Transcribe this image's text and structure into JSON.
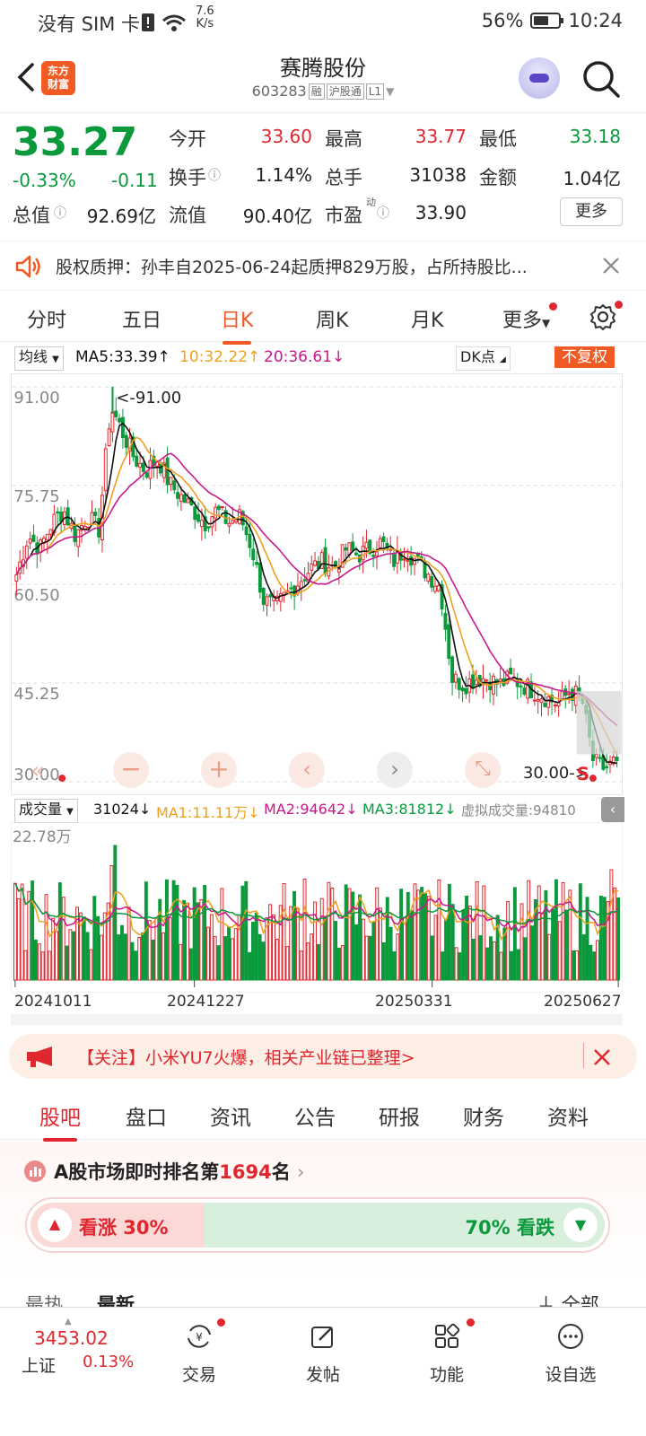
{
  "status_bar": {
    "carrier": "没有 SIM 卡",
    "net_speed_value": "7.6",
    "net_speed_unit": "K/s",
    "battery": "56%",
    "battery_level": 0.56,
    "time": "10:24"
  },
  "header": {
    "logo_line1": "东方",
    "logo_line2": "财富",
    "stock_name": "赛腾股份",
    "stock_code": "603283",
    "tags": [
      "融",
      "沪股通",
      "L1"
    ]
  },
  "quote": {
    "price": "33.27",
    "change_pct": "-0.33%",
    "change_val": "-0.11",
    "open_label": "今开",
    "open": "33.60",
    "high_label": "最高",
    "high": "33.77",
    "low_label": "最低",
    "low": "33.18",
    "turnover_label": "换手",
    "turnover": "1.14%",
    "volume_label": "总手",
    "volume": "31038",
    "amount_label": "金额",
    "amount": "1.04亿",
    "mktcap_label": "总值",
    "mktcap": "92.69亿",
    "float_label": "流值",
    "float_cap": "90.40亿",
    "pe_label": "市盈",
    "pe_sup": "动",
    "pe": "33.90",
    "more_label": "更多"
  },
  "notice": {
    "text": "股权质押：孙丰自2025-06-24起质押829万股，占所持股比..."
  },
  "chart_tabs": [
    "分时",
    "五日",
    "日K",
    "周K",
    "月K",
    "更多"
  ],
  "chart_tabs_active": 2,
  "ma_row": {
    "selector": "均线",
    "ma5": "MA5:33.39",
    "ma10": "10:32.22",
    "ma20": "20:36.61",
    "dk": "DK点",
    "adjust": "不复权"
  },
  "kline_labels": {
    "y_ticks": [
      "91.00",
      "75.75",
      "60.50",
      "45.25",
      "30.00"
    ],
    "max_marker": "<-91.00",
    "min_marker": "30.00->",
    "s_marker": "S"
  },
  "vol_row": {
    "selector": "成交量",
    "current": "31024",
    "ma1": "MA1:11.11万",
    "ma2": "MA2:94642",
    "ma3": "MA3:81812",
    "virtual": "虚拟成交量:94810",
    "max_label": "22.78万"
  },
  "dates": [
    "20241011",
    "20241227",
    "20250331",
    "20250627"
  ],
  "chart_data": {
    "type": "candlestick",
    "x_range": [
      "20241011",
      "20250627"
    ],
    "ylim": [
      30.0,
      91.0
    ],
    "y_ticks": [
      91.0,
      75.75,
      60.5,
      45.25,
      30.0
    ],
    "max_price": 91.0,
    "min_price": 30.0,
    "close_path": [
      62,
      68,
      66,
      70,
      72,
      68,
      71,
      69,
      88,
      84,
      80,
      78,
      80,
      76,
      74,
      72,
      70,
      72,
      70,
      71,
      66,
      58,
      57,
      59,
      61,
      63,
      64,
      63,
      66,
      65,
      66,
      67,
      64,
      66,
      64,
      62,
      60,
      46,
      45,
      46,
      46,
      45,
      46,
      45,
      44,
      43,
      42,
      44,
      43,
      33,
      32,
      33.27
    ],
    "volume_max": "22.78万",
    "series": [
      {
        "name": "MA5",
        "last": 33.39
      },
      {
        "name": "MA10",
        "last": 32.22
      },
      {
        "name": "MA20",
        "last": 36.61
      }
    ],
    "colors": {
      "up": "#e0262e",
      "down": "#0a9a3c",
      "ma5": "#111111",
      "ma10": "#f0a020",
      "ma20": "#c8198c"
    }
  },
  "promo": {
    "text": "【关注】小米YU7火爆，相关产业链已整理>"
  },
  "news_tabs": [
    "股吧",
    "盘口",
    "资讯",
    "公告",
    "研报",
    "财务",
    "资料"
  ],
  "news_tabs_active": 0,
  "rank": {
    "prefix": "A股市场即时排名第",
    "number": "1694",
    "suffix": "名",
    "bull_label": "看涨 30%",
    "bear_label": "70% 看跌",
    "bull_fraction": 0.3
  },
  "sort_row": {
    "hot": "最热",
    "latest": "最新",
    "all": "全部"
  },
  "bottom_nav": {
    "index_value": "3453.02",
    "index_name": "上证",
    "index_change": "0.13%",
    "items": [
      "交易",
      "发帖",
      "功能",
      "设自选"
    ]
  },
  "colors": {
    "accent": "#f15a22",
    "up": "#e0262e",
    "down": "#0a9a3c"
  }
}
